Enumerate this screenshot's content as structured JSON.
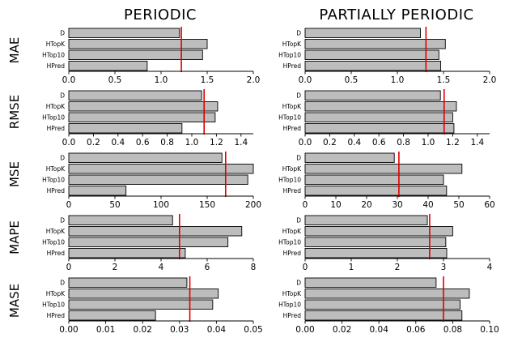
{
  "columns": [
    "PERIODIC",
    "PARTIALLY PERIODIC"
  ],
  "metrics": [
    "MAE",
    "RMSE",
    "MSE",
    "MAPE",
    "MASE"
  ],
  "colors": {
    "bar_fill": "#bdbdbd",
    "bar_edge": "#000000",
    "reference_line": "#e00000"
  },
  "chart_data": [
    {
      "type": "bar",
      "orientation": "horizontal",
      "column": "PERIODIC",
      "metric": "MAE",
      "categories": [
        "D",
        "HTopK",
        "HTop10",
        "HPred"
      ],
      "values": [
        1.2,
        1.5,
        1.45,
        0.85
      ],
      "xlim": [
        0,
        2.0
      ],
      "xticks": [
        "0.0",
        "0.5",
        "1.0",
        "1.5",
        "2.0"
      ],
      "reference": 1.22
    },
    {
      "type": "bar",
      "orientation": "horizontal",
      "column": "PARTIALLY PERIODIC",
      "metric": "MAE",
      "categories": [
        "D",
        "HTopK",
        "HTop10",
        "HPred"
      ],
      "values": [
        1.25,
        1.52,
        1.45,
        1.47
      ],
      "xlim": [
        0,
        2.0
      ],
      "xticks": [
        "0.0",
        "0.5",
        "1.0",
        "1.5",
        "2.0"
      ],
      "reference": 1.31
    },
    {
      "type": "bar",
      "orientation": "horizontal",
      "column": "PERIODIC",
      "metric": "RMSE",
      "categories": [
        "D",
        "HTopK",
        "HTop10",
        "HPred"
      ],
      "values": [
        1.08,
        1.21,
        1.19,
        0.92
      ],
      "xlim": [
        0,
        1.5
      ],
      "xticks": [
        "0.0",
        "0.2",
        "0.4",
        "0.6",
        "0.8",
        "1.0",
        "1.2",
        "1.4"
      ],
      "reference": 1.1
    },
    {
      "type": "bar",
      "orientation": "horizontal",
      "column": "PARTIALLY PERIODIC",
      "metric": "RMSE",
      "categories": [
        "D",
        "HTopK",
        "HTop10",
        "HPred"
      ],
      "values": [
        1.1,
        1.23,
        1.2,
        1.21
      ],
      "xlim": [
        0,
        1.5
      ],
      "xticks": [
        "0.0",
        "0.2",
        "0.4",
        "0.6",
        "0.8",
        "1.0",
        "1.2",
        "1.4"
      ],
      "reference": 1.13
    },
    {
      "type": "bar",
      "orientation": "horizontal",
      "column": "PERIODIC",
      "metric": "MSE",
      "categories": [
        "D",
        "HTopK",
        "HTop10",
        "HPred"
      ],
      "values": [
        166,
        200,
        194,
        62
      ],
      "xlim": [
        0,
        200
      ],
      "xticks": [
        "0",
        "50",
        "100",
        "150",
        "200"
      ],
      "reference": 170
    },
    {
      "type": "bar",
      "orientation": "horizontal",
      "column": "PARTIALLY PERIODIC",
      "metric": "MSE",
      "categories": [
        "D",
        "HTopK",
        "HTop10",
        "HPred"
      ],
      "values": [
        29,
        51,
        45,
        46
      ],
      "xlim": [
        0,
        60
      ],
      "xticks": [
        "0",
        "10",
        "20",
        "30",
        "40",
        "50",
        "60"
      ],
      "reference": 30.5
    },
    {
      "type": "bar",
      "orientation": "horizontal",
      "column": "PERIODIC",
      "metric": "MAPE",
      "categories": [
        "D",
        "HTopK",
        "HTop10",
        "HPred"
      ],
      "values": [
        4.5,
        7.5,
        6.9,
        5.05
      ],
      "xlim": [
        0,
        8
      ],
      "xticks": [
        "0",
        "2",
        "4",
        "6",
        "8"
      ],
      "reference": 4.8
    },
    {
      "type": "bar",
      "orientation": "horizontal",
      "column": "PARTIALLY PERIODIC",
      "metric": "MAPE",
      "categories": [
        "D",
        "HTopK",
        "HTop10",
        "HPred"
      ],
      "values": [
        2.65,
        3.2,
        3.05,
        3.07
      ],
      "xlim": [
        0,
        4
      ],
      "xticks": [
        "0",
        "1",
        "2",
        "3",
        "4"
      ],
      "reference": 2.7
    },
    {
      "type": "bar",
      "orientation": "horizontal",
      "column": "PERIODIC",
      "metric": "MASE",
      "categories": [
        "D",
        "HTopK",
        "HTop10",
        "HPred"
      ],
      "values": [
        0.032,
        0.0405,
        0.039,
        0.0235
      ],
      "xlim": [
        0,
        0.05
      ],
      "xticks": [
        "0.00",
        "0.01",
        "0.02",
        "0.03",
        "0.04",
        "0.05"
      ],
      "reference": 0.0328
    },
    {
      "type": "bar",
      "orientation": "horizontal",
      "column": "PARTIALLY PERIODIC",
      "metric": "MASE",
      "categories": [
        "D",
        "HTopK",
        "HTop10",
        "HPred"
      ],
      "values": [
        0.071,
        0.089,
        0.084,
        0.085
      ],
      "xlim": [
        0,
        0.1
      ],
      "xticks": [
        "0.00",
        "0.02",
        "0.04",
        "0.06",
        "0.08",
        "0.10"
      ],
      "reference": 0.075
    }
  ]
}
